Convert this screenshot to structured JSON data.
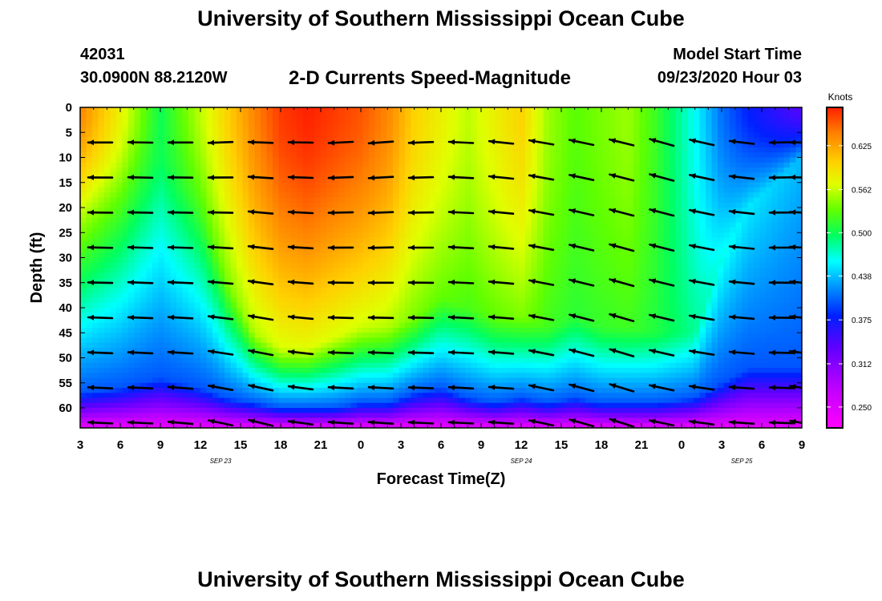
{
  "header": {
    "title": "University of Southern Mississippi Ocean Cube",
    "station_id": "42031",
    "station_coords": "30.0900N 88.2120W",
    "plot_title": "2-D Currents Speed-Magnitude",
    "model_start_label": "Model Start Time",
    "model_start_time": "09/23/2020 Hour 03"
  },
  "footer": {
    "title": "University of Southern Mississippi Ocean Cube"
  },
  "chart_data": {
    "type": "heatmap",
    "title": "2-D Currents Speed-Magnitude",
    "xlabel": "Forecast Time(Z)",
    "ylabel": "Depth (ft)",
    "x_ticks": [
      "3",
      "6",
      "9",
      "12",
      "15",
      "18",
      "21",
      "0",
      "3",
      "6",
      "9",
      "12",
      "15",
      "18",
      "21",
      "0",
      "3",
      "6",
      "9"
    ],
    "date_labels": [
      {
        "label": "SEP 23",
        "tick_index": 3.5
      },
      {
        "label": "SEP 24",
        "tick_index": 11
      },
      {
        "label": "SEP 25",
        "tick_index": 16.5
      }
    ],
    "y_ticks": [
      "0",
      "5",
      "10",
      "15",
      "20",
      "25",
      "30",
      "35",
      "40",
      "45",
      "50",
      "55",
      "60"
    ],
    "ylim": [
      0,
      64
    ],
    "xlim_hours": [
      0,
      54
    ],
    "colorbar": {
      "label": "Knots",
      "ticks": [
        "0.625",
        "0.562",
        "0.500",
        "0.438",
        "0.375",
        "0.312",
        "0.250"
      ],
      "range": [
        0.22,
        0.68
      ]
    },
    "speed_profile": {
      "x_hours": [
        0,
        3,
        6,
        9,
        11,
        13,
        15,
        17,
        19,
        21,
        23,
        25,
        27,
        29,
        31,
        33,
        35,
        37,
        39,
        41,
        43,
        46,
        48,
        50,
        52,
        54
      ],
      "surface_speed": [
        0.64,
        0.58,
        0.5,
        0.56,
        0.6,
        0.64,
        0.67,
        0.68,
        0.67,
        0.66,
        0.64,
        0.6,
        0.58,
        0.56,
        0.58,
        0.6,
        0.55,
        0.53,
        0.54,
        0.55,
        0.52,
        0.46,
        0.41,
        0.38,
        0.36,
        0.34
      ],
      "mixed_depth_ft": [
        22,
        18,
        10,
        20,
        35,
        45,
        48,
        48,
        46,
        44,
        44,
        42,
        38,
        40,
        42,
        42,
        44,
        42,
        44,
        44,
        45,
        45,
        30,
        20,
        15,
        10
      ],
      "bottom_depth_ft": [
        57,
        56,
        54,
        56,
        58,
        59,
        60,
        60,
        60,
        59,
        59,
        57,
        56,
        58,
        59,
        58,
        59,
        58,
        59,
        59,
        59,
        58,
        55,
        52,
        52,
        52
      ]
    },
    "vector_depths_ft": [
      7,
      14,
      21,
      28,
      35,
      42,
      49,
      56,
      63
    ],
    "vector_columns_hours": [
      1.5,
      4.5,
      7.5,
      10.5,
      13.5,
      16.5,
      19.5,
      22.5,
      25.5,
      28.5,
      31.5,
      34.5,
      37.5,
      40.5,
      43.5,
      46.5,
      49.5,
      52.5,
      54
    ],
    "vector_angle_deg": [
      0,
      -1,
      0,
      2,
      -2,
      -1,
      3,
      4,
      2,
      -3,
      -6,
      -10,
      -12,
      -14,
      -16,
      -13,
      -7,
      1,
      0
    ],
    "vector_angle_deep_deg": [
      -3,
      -3,
      -5,
      -12,
      -14,
      -8,
      -4,
      -4,
      -3,
      -3,
      -4,
      -12,
      -16,
      -18,
      -12,
      -8,
      -4,
      -2,
      -10
    ]
  }
}
